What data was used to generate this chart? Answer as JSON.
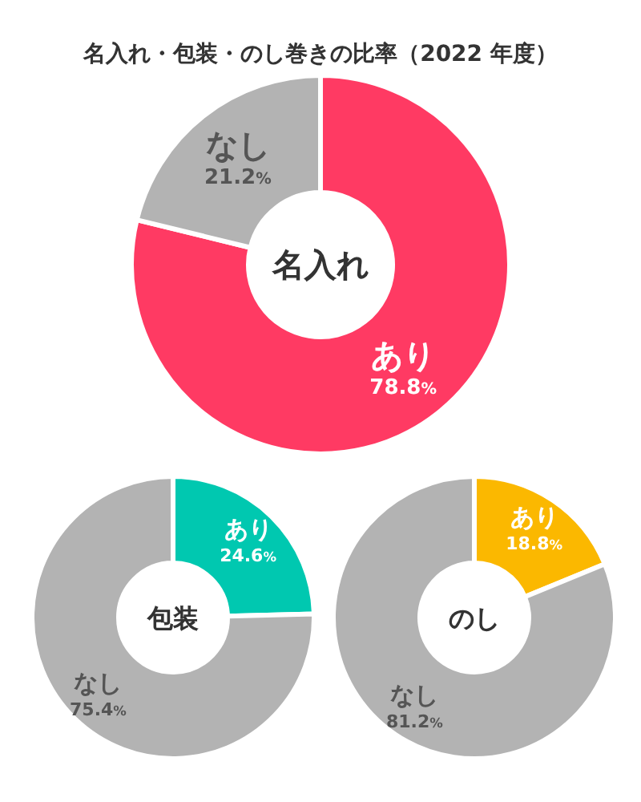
{
  "chart_data": [
    {
      "type": "donut",
      "title": "名入れ・包装・のし巻きの比率（2022 年度）",
      "annotations": [
        "名入れ"
      ],
      "categories": [
        "あり",
        "なし"
      ],
      "values": [
        78.8,
        21.2
      ],
      "colors": [
        "#ff3a63",
        "#b3b3b3"
      ],
      "value_labels": [
        "78.8%",
        "21.2%"
      ]
    },
    {
      "type": "donut",
      "annotations": [
        "包装"
      ],
      "categories": [
        "あり",
        "なし"
      ],
      "values": [
        24.6,
        75.4
      ],
      "colors": [
        "#00c8b0",
        "#b3b3b3"
      ],
      "value_labels": [
        "24.6%",
        "75.4%"
      ]
    },
    {
      "type": "donut",
      "annotations": [
        "のし"
      ],
      "categories": [
        "あり",
        "なし"
      ],
      "values": [
        18.8,
        81.2
      ],
      "colors": [
        "#fbb800",
        "#b3b3b3"
      ],
      "value_labels": [
        "18.8%",
        "81.2%"
      ]
    }
  ]
}
